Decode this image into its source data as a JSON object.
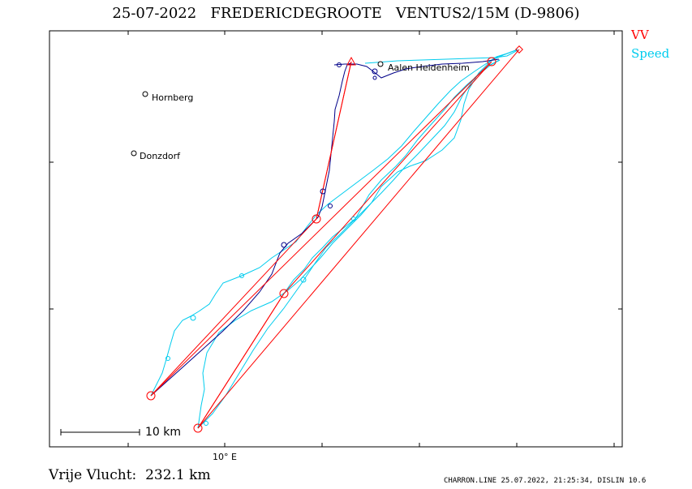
{
  "title": "25-07-2022   FREDERICDEGROOTE   VENTUS2/15M (D-9806)",
  "legend": {
    "items": [
      {
        "label": "VV",
        "color": "#ff0000"
      },
      {
        "label": "Speed",
        "color": "#00ccee"
      }
    ]
  },
  "map": {
    "x_tick_label": "10° E",
    "scale_bar_label": "10 km",
    "places": [
      {
        "name": "Hornberg"
      },
      {
        "name": "Donzdorf"
      },
      {
        "name": "Aalen Heidenheim"
      }
    ]
  },
  "footer": {
    "distance_label": "Vrije Vlucht:  232.1 km",
    "credits": "CHARRON.LINE 25.07.2022, 21:25:34, DISLIN 10.6"
  },
  "colors": {
    "task": "#ff0000",
    "speed_track": "#00ccee",
    "vv_track": "#000088",
    "frame": "#000000"
  }
}
